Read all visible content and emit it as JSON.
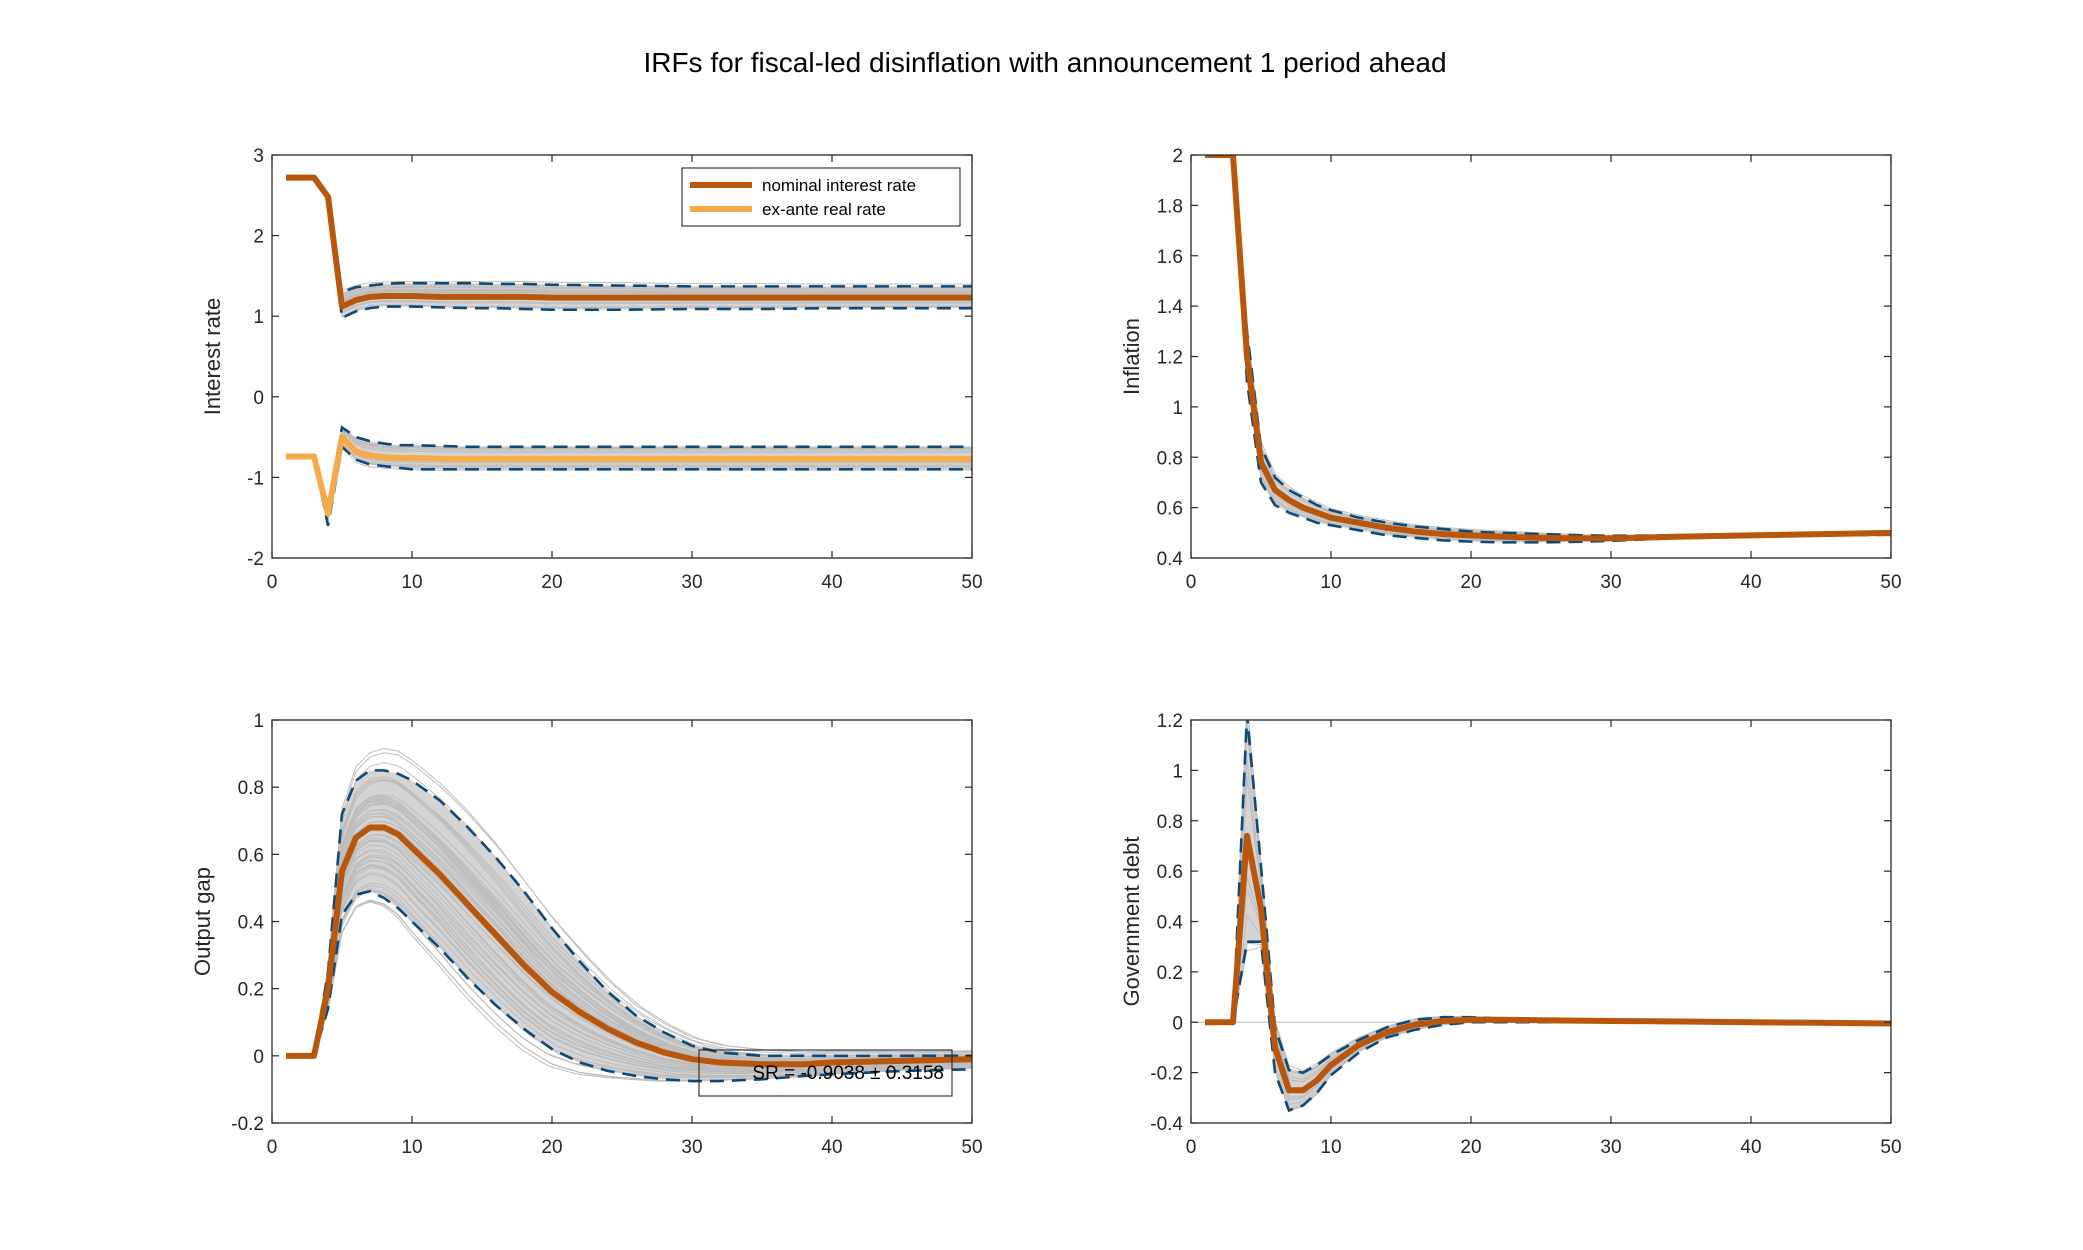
{
  "figure": {
    "title": "IRFs for fiscal-led disinflation with announcement 1 period ahead"
  },
  "colors": {
    "nominal": "#b8560b",
    "real": "#f7a94a",
    "band": "#0b4a78",
    "draws": "#bdbdbd",
    "zero_line": "#c8c8c8"
  },
  "chart_data": [
    {
      "type": "line",
      "ylabel": "Interest rate",
      "xlim": [
        0,
        50
      ],
      "ylim": [
        -2,
        3
      ],
      "xticks": [
        0,
        10,
        20,
        30,
        40,
        50
      ],
      "yticks": [
        -2,
        -1,
        0,
        1,
        2,
        3
      ],
      "legend": {
        "location": "top-right",
        "entries": [
          "nominal interest rate",
          "ex-ante real rate"
        ]
      },
      "series": [
        {
          "name": "nominal interest rate",
          "x": [
            1,
            2,
            3,
            4,
            5,
            6,
            7,
            8,
            9,
            10,
            12,
            14,
            16,
            18,
            20,
            25,
            30,
            35,
            40,
            45,
            50
          ],
          "y": [
            2.72,
            2.72,
            2.72,
            2.48,
            1.12,
            1.2,
            1.24,
            1.25,
            1.25,
            1.25,
            1.24,
            1.24,
            1.24,
            1.24,
            1.23,
            1.23,
            1.23,
            1.23,
            1.23,
            1.23,
            1.23
          ],
          "band_upper": [
            2.72,
            2.72,
            2.72,
            2.48,
            1.3,
            1.36,
            1.38,
            1.4,
            1.41,
            1.41,
            1.41,
            1.41,
            1.4,
            1.4,
            1.39,
            1.38,
            1.37,
            1.37,
            1.37,
            1.37,
            1.37
          ],
          "band_lower": [
            2.72,
            2.72,
            2.72,
            2.45,
            0.98,
            1.06,
            1.1,
            1.12,
            1.12,
            1.12,
            1.11,
            1.1,
            1.1,
            1.09,
            1.08,
            1.08,
            1.09,
            1.09,
            1.1,
            1.1,
            1.1
          ]
        },
        {
          "name": "ex-ante real rate",
          "x": [
            1,
            2,
            3,
            4,
            5,
            6,
            7,
            8,
            9,
            10,
            12,
            14,
            16,
            18,
            20,
            25,
            30,
            35,
            40,
            45,
            50
          ],
          "y": [
            -0.74,
            -0.74,
            -0.74,
            -1.45,
            -0.5,
            -0.68,
            -0.73,
            -0.75,
            -0.76,
            -0.76,
            -0.77,
            -0.77,
            -0.77,
            -0.77,
            -0.77,
            -0.77,
            -0.77,
            -0.77,
            -0.77,
            -0.77,
            -0.77
          ],
          "band_upper": [
            -0.74,
            -0.74,
            -0.74,
            -1.35,
            -0.38,
            -0.5,
            -0.55,
            -0.58,
            -0.6,
            -0.6,
            -0.61,
            -0.62,
            -0.62,
            -0.62,
            -0.62,
            -0.62,
            -0.62,
            -0.62,
            -0.62,
            -0.62,
            -0.62
          ],
          "band_lower": [
            -0.74,
            -0.74,
            -0.74,
            -1.6,
            -0.62,
            -0.78,
            -0.84,
            -0.86,
            -0.88,
            -0.9,
            -0.9,
            -0.9,
            -0.9,
            -0.9,
            -0.9,
            -0.9,
            -0.9,
            -0.9,
            -0.9,
            -0.9,
            -0.9
          ]
        }
      ]
    },
    {
      "type": "line",
      "ylabel": "Inflation",
      "xlim": [
        0,
        50
      ],
      "ylim": [
        0.4,
        2
      ],
      "xticks": [
        0,
        10,
        20,
        30,
        40,
        50
      ],
      "yticks": [
        0.4,
        0.6,
        0.8,
        1,
        1.2,
        1.4,
        1.6,
        1.8,
        2
      ],
      "series": [
        {
          "x": [
            1,
            2,
            3,
            4,
            5,
            6,
            7,
            8,
            9,
            10,
            12,
            14,
            16,
            18,
            20,
            22,
            25,
            28,
            30,
            35,
            40,
            45,
            50
          ],
          "y": [
            2,
            2,
            2,
            1.2,
            0.78,
            0.67,
            0.63,
            0.6,
            0.58,
            0.56,
            0.54,
            0.52,
            0.505,
            0.495,
            0.49,
            0.485,
            0.48,
            0.478,
            0.478,
            0.485,
            0.49,
            0.495,
            0.5
          ],
          "band_upper": [
            2,
            2,
            2,
            1.3,
            0.84,
            0.72,
            0.67,
            0.64,
            0.61,
            0.59,
            0.56,
            0.54,
            0.525,
            0.515,
            0.505,
            0.5,
            0.495,
            0.49,
            0.488,
            0.49,
            0.495,
            0.5,
            0.505
          ],
          "band_lower": [
            2,
            2,
            2,
            1.1,
            0.7,
            0.61,
            0.58,
            0.56,
            0.54,
            0.53,
            0.51,
            0.49,
            0.48,
            0.47,
            0.465,
            0.462,
            0.462,
            0.465,
            0.468,
            0.48,
            0.488,
            0.49,
            0.492
          ]
        }
      ]
    },
    {
      "type": "line",
      "ylabel": "Output gap",
      "xlim": [
        0,
        50
      ],
      "ylim": [
        -0.2,
        1
      ],
      "xticks": [
        0,
        10,
        20,
        30,
        40,
        50
      ],
      "yticks": [
        -0.2,
        0,
        0.2,
        0.4,
        0.6,
        0.8,
        1
      ],
      "annotation": "SR = -0.9038 ± 0.3158",
      "series": [
        {
          "x": [
            1,
            2,
            3,
            4,
            5,
            6,
            7,
            8,
            9,
            10,
            12,
            14,
            16,
            18,
            20,
            22,
            24,
            26,
            28,
            30,
            32,
            35,
            38,
            40,
            45,
            50
          ],
          "y": [
            0,
            0,
            0,
            0.2,
            0.55,
            0.65,
            0.68,
            0.68,
            0.66,
            0.62,
            0.54,
            0.45,
            0.36,
            0.27,
            0.19,
            0.13,
            0.08,
            0.04,
            0.01,
            -0.01,
            -0.02,
            -0.025,
            -0.025,
            -0.02,
            -0.015,
            -0.01
          ],
          "band_upper": [
            0,
            0,
            0,
            0.25,
            0.72,
            0.82,
            0.85,
            0.85,
            0.84,
            0.82,
            0.76,
            0.68,
            0.59,
            0.49,
            0.38,
            0.28,
            0.19,
            0.12,
            0.07,
            0.03,
            0.01,
            0,
            0,
            0,
            0,
            0
          ],
          "band_lower": [
            0,
            0,
            0,
            0.14,
            0.42,
            0.48,
            0.49,
            0.47,
            0.44,
            0.4,
            0.32,
            0.23,
            0.15,
            0.08,
            0.02,
            -0.02,
            -0.045,
            -0.06,
            -0.07,
            -0.075,
            -0.075,
            -0.07,
            -0.06,
            -0.055,
            -0.045,
            -0.04
          ]
        }
      ]
    },
    {
      "type": "line",
      "ylabel": "Government debt",
      "xlim": [
        0,
        50
      ],
      "ylim": [
        -0.4,
        1.2
      ],
      "xticks": [
        0,
        10,
        20,
        30,
        40,
        50
      ],
      "yticks": [
        -0.4,
        -0.2,
        0,
        0.2,
        0.4,
        0.6,
        0.8,
        1,
        1.2
      ],
      "series": [
        {
          "x": [
            1,
            2,
            3,
            4,
            5,
            6,
            7,
            8,
            9,
            10,
            12,
            14,
            16,
            18,
            20,
            22,
            25,
            30,
            35,
            40,
            45,
            50
          ],
          "y": [
            0,
            0,
            0,
            0.74,
            0.45,
            -0.1,
            -0.27,
            -0.27,
            -0.23,
            -0.17,
            -0.09,
            -0.04,
            -0.01,
            0.005,
            0.01,
            0.01,
            0.008,
            0.005,
            0.003,
            0,
            -0.002,
            -0.005
          ],
          "band_upper": [
            0,
            0,
            0,
            1.22,
            0.62,
            -0.02,
            -0.19,
            -0.2,
            -0.17,
            -0.13,
            -0.07,
            -0.02,
            0.01,
            0.02,
            0.02,
            0.015,
            0.012,
            0.008,
            0.006,
            0.004,
            0.002,
            0
          ],
          "band_lower": [
            0,
            0,
            0,
            0.32,
            0.32,
            -0.2,
            -0.35,
            -0.33,
            -0.28,
            -0.21,
            -0.12,
            -0.06,
            -0.03,
            -0.01,
            0,
            0,
            0,
            0,
            -0.003,
            -0.005,
            -0.008,
            -0.01
          ]
        }
      ]
    }
  ]
}
